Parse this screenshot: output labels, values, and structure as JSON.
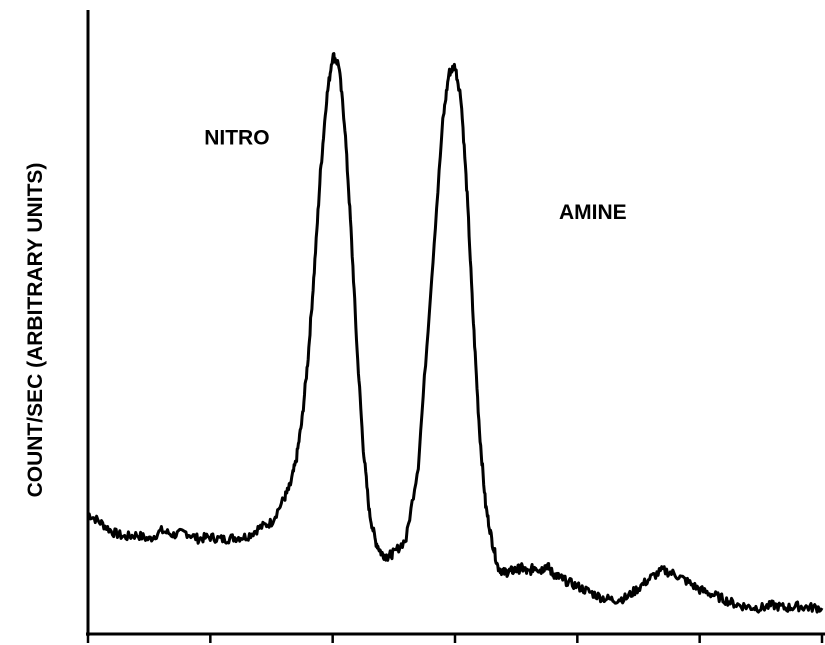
{
  "chart_data": {
    "type": "line",
    "title": "",
    "xlabel": "",
    "ylabel": "COUNT/SEC (ARBITRARY UNITS)",
    "xlim": [
      0,
      6
    ],
    "ylim": [
      0,
      100
    ],
    "x_ticks": [
      0,
      1,
      2,
      3,
      4,
      5,
      6
    ],
    "x_tick_labels": [],
    "grid": false,
    "legend": "none",
    "annotations": [
      {
        "text": "NITRO",
        "x": 0.95,
        "y": 81
      },
      {
        "text": "AMINE",
        "x": 3.85,
        "y": 68
      }
    ],
    "series": [
      {
        "color": "#000000",
        "x": [
          0.0,
          0.1,
          0.2,
          0.3,
          0.4,
          0.5,
          0.6,
          0.7,
          0.8,
          0.9,
          1.0,
          1.1,
          1.2,
          1.3,
          1.4,
          1.5,
          1.6,
          1.65,
          1.7,
          1.75,
          1.8,
          1.85,
          1.9,
          1.95,
          2.0,
          2.05,
          2.1,
          2.15,
          2.2,
          2.25,
          2.3,
          2.35,
          2.4,
          2.45,
          2.5,
          2.6,
          2.7,
          2.8,
          2.9,
          2.95,
          3.0,
          3.05,
          3.1,
          3.15,
          3.2,
          3.25,
          3.3,
          3.35,
          3.4,
          3.45,
          3.5,
          3.55,
          3.6,
          3.65,
          3.7,
          3.75,
          3.8,
          3.85,
          3.9,
          4.0,
          4.1,
          4.2,
          4.3,
          4.4,
          4.5,
          4.6,
          4.7,
          4.8,
          4.9,
          5.0,
          5.1,
          5.2,
          5.3,
          5.4,
          5.5,
          5.6,
          5.7,
          5.8,
          5.9,
          6.0
        ],
        "values": [
          16.5,
          15.0,
          13.3,
          12.4,
          12.8,
          12.0,
          13.5,
          12.8,
          13.2,
          12.1,
          12.4,
          12.0,
          12.3,
          12.5,
          14.0,
          15.0,
          19.0,
          21.2,
          25.6,
          32.9,
          44.0,
          59.0,
          76.0,
          89.0,
          96.7,
          95.0,
          84.0,
          66.0,
          45.0,
          28.0,
          16.7,
          11.7,
          9.5,
          9.0,
          9.6,
          12.0,
          25.0,
          55.0,
          85.0,
          93.5,
          94.8,
          89.0,
          72.0,
          50.0,
          31.0,
          18.0,
          12.0,
          7.2,
          6.2,
          6.4,
          6.7,
          7.0,
          6.1,
          7.3,
          6.6,
          7.5,
          6.0,
          5.4,
          4.8,
          3.8,
          2.8,
          1.8,
          1.4,
          1.8,
          3.5,
          5.3,
          6.6,
          5.9,
          4.6,
          3.2,
          2.4,
          1.5,
          0.6,
          0.2,
          0.0,
          0.5,
          0.0,
          0.3,
          0.1,
          0.0
        ]
      }
    ]
  }
}
